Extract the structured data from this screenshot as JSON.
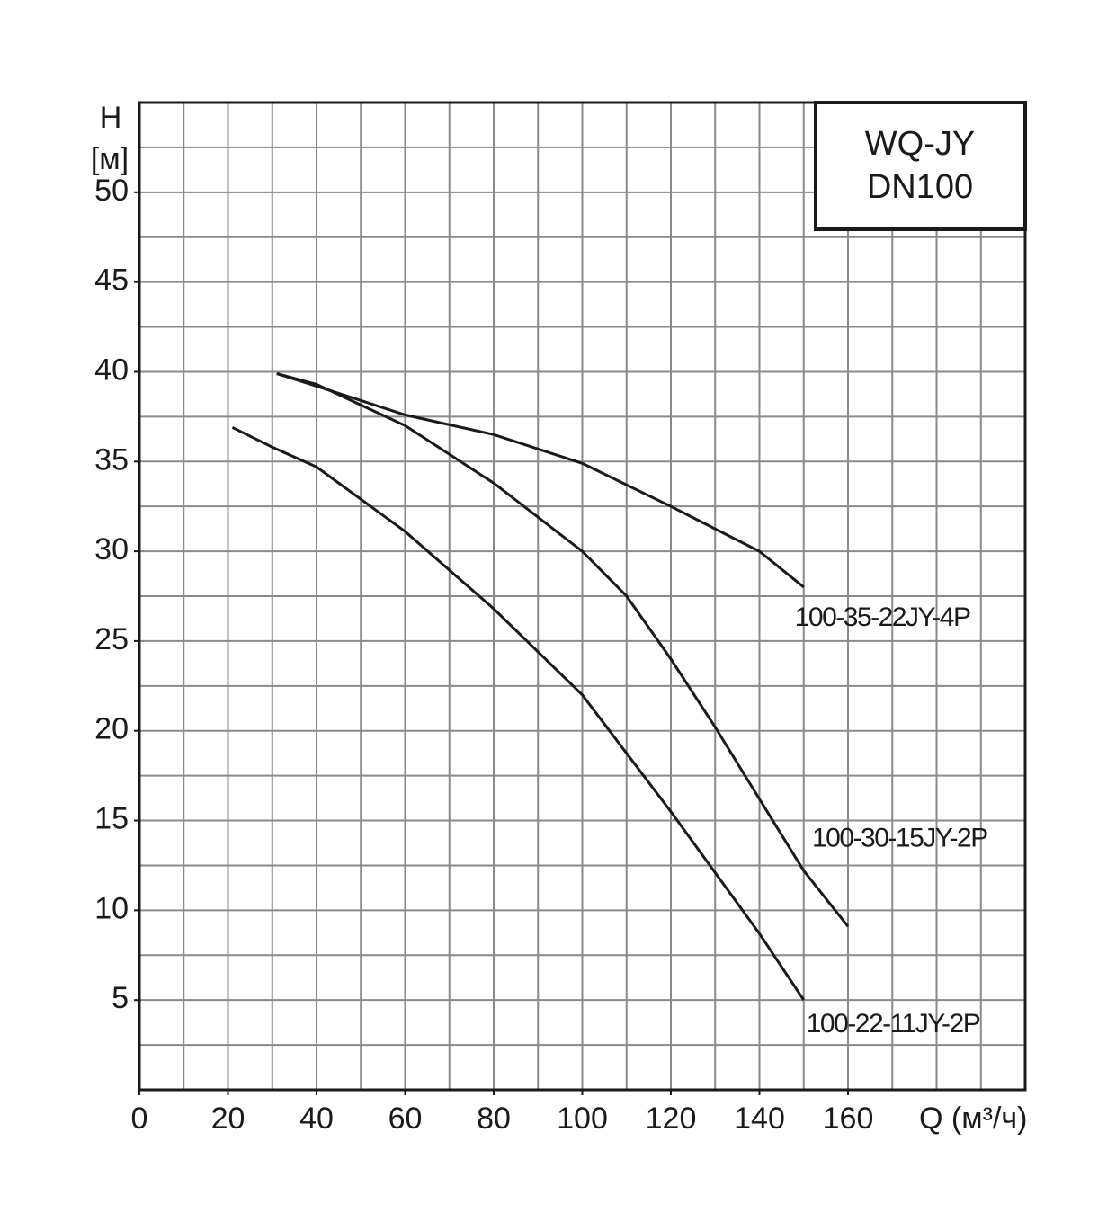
{
  "chart_data": {
    "type": "line",
    "title": "WQ-JY",
    "subtitle": "DN100",
    "y_label": "H",
    "y_unit": "[м]",
    "x_label": "Q (м³/ч)",
    "xlim": [
      0,
      200
    ],
    "ylim": [
      0,
      55
    ],
    "xticks": [
      0,
      20,
      40,
      60,
      80,
      100,
      120,
      140,
      160
    ],
    "yticks": [
      5,
      10,
      15,
      20,
      25,
      30,
      35,
      40,
      45,
      50
    ],
    "xgrid": [
      0,
      10,
      20,
      30,
      40,
      50,
      60,
      70,
      80,
      90,
      100,
      110,
      120,
      130,
      140,
      150,
      160,
      170,
      180,
      190,
      200
    ],
    "ygrid": [
      0,
      2.5,
      5,
      7.5,
      10,
      12.5,
      15,
      17.5,
      20,
      22.5,
      25,
      27.5,
      30,
      32.5,
      35,
      37.5,
      40,
      42.5,
      45,
      47.5,
      50,
      52.5,
      55
    ],
    "grid": true,
    "series": [
      {
        "name": "100-35-22JY-4P",
        "color": "#1a1a1a",
        "x": [
          31,
          40,
          60,
          80,
          100,
          120,
          140,
          150
        ],
        "values": [
          39.9,
          39.2,
          37.6,
          36.5,
          34.9,
          32.5,
          30,
          28
        ]
      },
      {
        "name": "100-30-15JY-2P",
        "color": "#1a1a1a",
        "x": [
          31,
          40,
          60,
          80,
          100,
          110,
          120,
          130,
          140,
          150,
          160
        ],
        "values": [
          39.9,
          39.3,
          37,
          33.8,
          30,
          27.5,
          24,
          20.2,
          16.2,
          12.2,
          9.1
        ]
      },
      {
        "name": "100-22-11JY-2P",
        "color": "#1a1a1a",
        "x": [
          21,
          30,
          40,
          60,
          80,
          90,
          100,
          120,
          140,
          150
        ],
        "values": [
          36.9,
          35.8,
          34.7,
          31.1,
          26.8,
          24.4,
          22,
          15.5,
          8.7,
          5
        ]
      }
    ]
  }
}
